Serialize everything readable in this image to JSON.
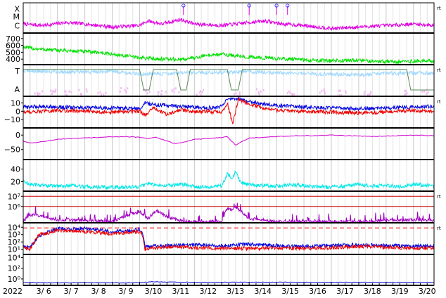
{
  "chart_data": {
    "type": "line",
    "time_axis": {
      "year_label": "2022",
      "start": "2022-03-05T18:00",
      "end": "2022-03-20T18:00",
      "tick_labels": [
        "3/ 6",
        "3/ 7",
        "3/ 8",
        "3/ 9",
        "3/10",
        "3/11",
        "3/12",
        "3/13",
        "3/14",
        "3/15",
        "3/16",
        "3/17",
        "3/18",
        "3/19",
        "3/20"
      ]
    },
    "panels": [
      {
        "id": "xray-flares",
        "y_labels": [
          "X",
          "M",
          "C"
        ],
        "right_tag": "rt",
        "series": [
          {
            "color": "#e000e0",
            "style": "noisy",
            "x": [
              5.75,
              6.5,
              7.3,
              8,
              9,
              10,
              10.3,
              10.8,
              11.5,
              12,
              13,
              14,
              14.6,
              15.2,
              16,
              17,
              18,
              19,
              20,
              20.75
            ],
            "y": [
              0.3,
              0.25,
              0.35,
              0.3,
              0.2,
              0.25,
              0.4,
              0.3,
              0.45,
              0.3,
              0.25,
              0.35,
              0.4,
              0.3,
              0.25,
              0.15,
              0.2,
              0.25,
              0.3,
              0.25
            ]
          }
        ],
        "flare_markers": [
          11.6,
          14.0,
          15.0,
          15.4
        ]
      },
      {
        "id": "solar-wind-speed",
        "y_ticks": [
          "700",
          "600",
          "500",
          "400"
        ],
        "y_tick_values": [
          700,
          600,
          500,
          400
        ],
        "ylim": [
          320,
          780
        ],
        "series": [
          {
            "color": "#00e000",
            "style": "noisy",
            "x": [
              5.75,
              6,
              6.5,
              7,
              7.5,
              8,
              8.5,
              9,
              9.5,
              10,
              10.5,
              11,
              11.5,
              12,
              12.5,
              13,
              13.5,
              14,
              14.5,
              15,
              15.5,
              16,
              16.5,
              17,
              17.5,
              18,
              18.5,
              19,
              19.5,
              20,
              20.75
            ],
            "y": [
              580,
              560,
              540,
              530,
              520,
              510,
              500,
              470,
              450,
              420,
              410,
              400,
              395,
              420,
              460,
              470,
              450,
              430,
              420,
              410,
              400,
              390,
              380,
              375,
              380,
              385,
              370,
              370,
              360,
              370,
              375
            ]
          }
        ]
      },
      {
        "id": "temperature-alfven",
        "y_labels": [
          "T",
          "A"
        ],
        "right_tag": "rt",
        "series": [
          {
            "color": "#9fd8ff",
            "style": "noisy",
            "x": [
              5.75,
              7,
              8,
              9,
              10,
              11,
              12,
              13,
              14,
              15,
              16,
              17,
              18,
              19,
              20,
              20.75
            ],
            "y": [
              0.8,
              0.78,
              0.76,
              0.8,
              0.7,
              0.72,
              0.74,
              0.76,
              0.78,
              0.74,
              0.72,
              0.7,
              0.68,
              0.72,
              0.74,
              0.72
            ]
          },
          {
            "color": "#f2b8f2",
            "style": "scatter",
            "x": [
              6.3,
              6.8,
              7.4,
              7.9,
              8.6,
              9.4,
              10.2,
              10.8,
              11.3,
              12.2,
              13.5,
              14.4,
              15.5,
              16.6,
              17.4,
              18.3,
              19.6,
              20.4
            ],
            "y": [
              0.15,
              0.2,
              0.12,
              0.18,
              0.1,
              0.22,
              0.16,
              0.12,
              0.2,
              0.15,
              0.1,
              0.18,
              0.14,
              0.2,
              0.12,
              0.16,
              0.14,
              0.2
            ]
          },
          {
            "color": "#5a8a5a",
            "style": "step",
            "x": [
              5.75,
              10.0,
              10.15,
              10.35,
              10.5,
              11.35,
              11.5,
              11.7,
              11.85,
              13.2,
              13.35,
              13.6,
              13.75,
              19.75,
              19.9,
              20.75
            ],
            "y": [
              0.85,
              0.85,
              0.2,
              0.2,
              0.85,
              0.85,
              0.2,
              0.2,
              0.85,
              0.85,
              0.2,
              0.2,
              0.85,
              0.85,
              0.2,
              0.2
            ]
          }
        ]
      },
      {
        "id": "imf-bz",
        "y_ticks": [
          "10",
          "0",
          "−10"
        ],
        "y_tick_values": [
          10,
          0,
          -10
        ],
        "ylim": [
          -20,
          18
        ],
        "right_tag": "rt",
        "series": [
          {
            "color": "#0000dd",
            "style": "noisy",
            "x": [
              5.75,
              6.5,
              7,
              8,
              9,
              10,
              10.2,
              10.5,
              11,
              11.5,
              12,
              12.5,
              13,
              13.2,
              13.5,
              14,
              14.5,
              15,
              16,
              17,
              18,
              19,
              20,
              20.75
            ],
            "y": [
              5,
              6,
              5,
              4,
              4,
              3,
              10,
              8,
              7,
              6,
              5,
              4,
              6,
              14,
              15,
              12,
              9,
              7,
              5,
              4,
              3,
              4,
              5,
              6
            ]
          },
          {
            "color": "#ee0000",
            "style": "noisy",
            "x": [
              5.75,
              6.5,
              7,
              8,
              9,
              10,
              10.2,
              10.5,
              11,
              11.5,
              12,
              12.5,
              13,
              13.2,
              13.4,
              13.6,
              14,
              14.5,
              15,
              16,
              17,
              18,
              19,
              20,
              20.75
            ],
            "y": [
              -1,
              0,
              1,
              0,
              -1,
              0,
              -5,
              4,
              -4,
              2,
              -1,
              0,
              -2,
              10,
              -15,
              14,
              9,
              4,
              1,
              0,
              -1,
              -2,
              -1,
              1,
              0
            ]
          }
        ]
      },
      {
        "id": "dst",
        "y_ticks": [
          "0",
          "−50"
        ],
        "y_tick_values": [
          0,
          -50
        ],
        "ylim": [
          -85,
          25
        ],
        "series": [
          {
            "color": "#d000d0",
            "style": "smooth",
            "x": [
              5.75,
              6,
              6.5,
              7,
              7.5,
              8,
              8.5,
              9,
              9.5,
              10,
              10.3,
              10.6,
              11,
              11.3,
              11.6,
              12,
              12.5,
              13,
              13.2,
              13.5,
              13.8,
              14,
              14.5,
              15,
              15.5,
              16,
              16.5,
              17,
              17.5,
              18,
              18.5,
              19,
              19.5,
              20,
              20.75
            ],
            "y": [
              -20,
              -28,
              -22,
              -15,
              -12,
              -10,
              -8,
              -6,
              -5,
              -8,
              -12,
              -8,
              -20,
              -30,
              -25,
              -15,
              -12,
              -8,
              -5,
              -35,
              -20,
              -10,
              -8,
              -5,
              -3,
              -2,
              -2,
              0,
              -2,
              -3,
              -5,
              -3,
              -2,
              0,
              -2
            ]
          }
        ]
      },
      {
        "id": "ae-index",
        "y_ticks": [
          "40",
          "20"
        ],
        "y_tick_values": [
          40,
          20
        ],
        "ylim": [
          5,
          55
        ],
        "series": [
          {
            "color": "#00e8e8",
            "style": "noisy",
            "x": [
              5.75,
              6,
              6.5,
              7,
              7.5,
              8,
              9,
              10,
              10.3,
              10.6,
              11,
              11.5,
              12,
              12.5,
              13,
              13.2,
              13.4,
              13.5,
              13.7,
              14,
              14.5,
              15,
              15.5,
              16,
              16.5,
              17,
              17.5,
              18,
              18.5,
              19,
              19.5,
              20,
              20.75
            ],
            "y": [
              20,
              16,
              14,
              13,
              14,
              12,
              11,
              12,
              17,
              15,
              14,
              16,
              12,
              11,
              14,
              32,
              26,
              36,
              18,
              15,
              14,
              13,
              15,
              14,
              12,
              11,
              13,
              16,
              13,
              14,
              12,
              16,
              13
            ]
          }
        ]
      },
      {
        "id": "proton-flux",
        "y_ticks": [
          "10⁷",
          "10⁶"
        ],
        "y_tick_values": [
          7,
          6
        ],
        "ylim": [
          4.4,
          7.5
        ],
        "right_tag": "rt",
        "reference_lines": [
          7,
          6
        ],
        "series": [
          {
            "color": "#a000c0",
            "style": "spiky",
            "x": [
              5.75,
              6,
              6.5,
              7,
              8,
              9,
              9.5,
              10,
              10.3,
              10.6,
              11,
              11.5,
              12,
              12.5,
              13,
              13.2,
              13.4,
              13.5,
              14,
              15,
              16,
              17,
              18,
              19,
              20,
              20.75
            ],
            "y": [
              4.6,
              5.2,
              5.0,
              4.7,
              4.6,
              4.5,
              5.1,
              5.5,
              4.8,
              5.6,
              5.0,
              4.6,
              4.5,
              4.5,
              4.6,
              5.8,
              5.6,
              6.0,
              4.8,
              4.5,
              4.5,
              4.5,
              4.5,
              4.6,
              4.7,
              4.6
            ]
          }
        ]
      },
      {
        "id": "electron-flux",
        "y_ticks": [
          "10⁴",
          "10³",
          "10²",
          "10¹"
        ],
        "y_tick_values": [
          4,
          3,
          2,
          1
        ],
        "ylim": [
          0.3,
          4.6
        ],
        "right_tag": "rt",
        "dashed_threshold": 3.9,
        "series": [
          {
            "color": "#0000dd",
            "style": "noisy",
            "x": [
              5.75,
              6,
              6.3,
              6.6,
              7,
              7.5,
              8,
              8.5,
              9,
              9.5,
              10,
              10.1,
              10.2,
              10.5,
              11,
              12,
              13,
              14,
              15,
              16,
              17,
              18,
              19,
              20,
              20.75
            ],
            "y": [
              1.5,
              1.2,
              2.8,
              3.3,
              3.8,
              3.7,
              3.9,
              3.6,
              3.4,
              3.5,
              3.7,
              3.3,
              1.3,
              1.4,
              1.5,
              1.6,
              1.5,
              1.7,
              1.5,
              1.4,
              1.5,
              1.6,
              1.5,
              1.4,
              1.5
            ]
          },
          {
            "color": "#ee0000",
            "style": "noisy",
            "x": [
              5.75,
              6,
              6.3,
              6.6,
              7,
              7.5,
              8,
              8.5,
              9,
              9.5,
              10,
              10.1,
              10.2,
              10.5,
              11,
              12,
              13,
              14,
              15,
              16,
              17,
              18,
              19,
              20,
              20.75
            ],
            "y": [
              1.3,
              1.0,
              2.9,
              3.2,
              3.6,
              3.5,
              3.4,
              3.3,
              3.1,
              3.3,
              3.4,
              3.0,
              1.0,
              1.2,
              1.3,
              1.2,
              1.2,
              1.1,
              1.2,
              1.1,
              1.2,
              1.4,
              1.3,
              1.1,
              1.2
            ]
          }
        ]
      },
      {
        "id": "neutron-monitor",
        "y_ticks": [
          "10⁴",
          "10²",
          "10⁰"
        ],
        "y_tick_values": [
          4,
          2,
          0
        ],
        "ylim": [
          -1.2,
          4.6
        ],
        "series": [
          {
            "color": "#0000cc",
            "style": "smooth",
            "x": [
              5.75,
              7,
              8,
              9,
              10,
              10.5,
              11,
              12,
              13,
              14,
              15,
              16,
              17,
              18,
              19,
              20,
              20.75
            ],
            "y": [
              -0.7,
              -0.72,
              -0.7,
              -0.72,
              -0.7,
              -0.5,
              -0.6,
              -0.65,
              -0.62,
              -0.6,
              -0.62,
              -0.64,
              -0.63,
              -0.65,
              -0.64,
              -0.66,
              -0.65
            ]
          }
        ]
      }
    ]
  }
}
